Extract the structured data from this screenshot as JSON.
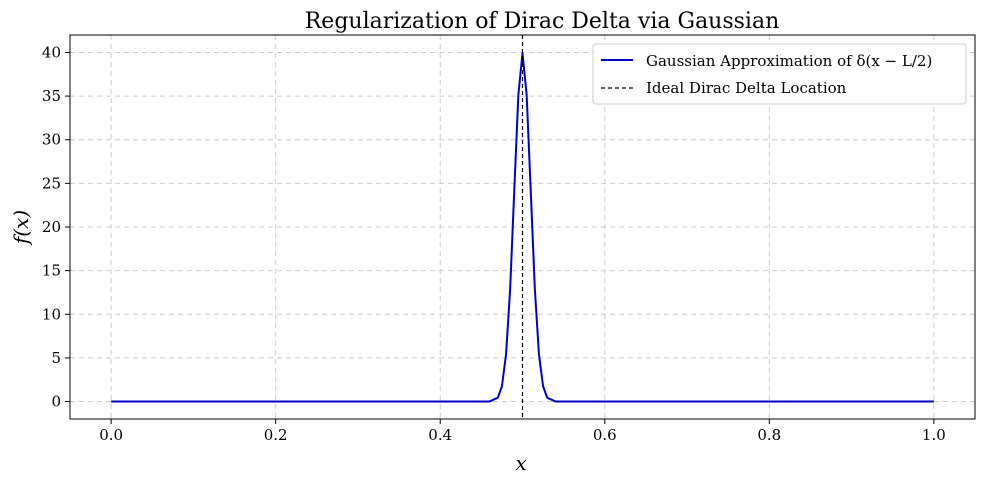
{
  "chart_data": {
    "type": "line",
    "title": "Regularization of Dirac Delta via Gaussian",
    "xlabel": "x",
    "ylabel": "f(x)",
    "xlim": [
      -0.05,
      1.05
    ],
    "ylim": [
      -2,
      42
    ],
    "x_ticks": [
      0.0,
      0.2,
      0.4,
      0.6,
      0.8,
      1.0
    ],
    "x_tick_labels": [
      "0.0",
      "0.2",
      "0.4",
      "0.6",
      "0.8",
      "1.0"
    ],
    "y_ticks": [
      0,
      5,
      10,
      15,
      20,
      25,
      30,
      35,
      40
    ],
    "y_tick_labels": [
      "0",
      "5",
      "10",
      "15",
      "20",
      "25",
      "30",
      "35",
      "40"
    ],
    "grid": true,
    "legend_position": "top-right",
    "series": [
      {
        "name": "Gaussian Approximation of δ(x − L/2)",
        "kind": "line",
        "color": "#0000cc",
        "x": [
          0.0,
          0.1,
          0.2,
          0.3,
          0.4,
          0.44,
          0.46,
          0.47,
          0.475,
          0.48,
          0.485,
          0.49,
          0.495,
          0.5,
          0.505,
          0.51,
          0.515,
          0.52,
          0.525,
          0.53,
          0.54,
          0.56,
          0.6,
          0.7,
          0.8,
          0.9,
          1.0
        ],
        "y": [
          0,
          0,
          0,
          0,
          0,
          0.0,
          0.01,
          0.44,
          1.75,
          5.4,
          12.9,
          24.2,
          35.2,
          39.9,
          35.2,
          24.2,
          12.9,
          5.4,
          1.75,
          0.44,
          0.01,
          0,
          0,
          0,
          0,
          0,
          0
        ]
      },
      {
        "name": "Ideal Dirac Delta Location",
        "kind": "vline",
        "color": "#000000",
        "x": 0.5
      }
    ]
  }
}
